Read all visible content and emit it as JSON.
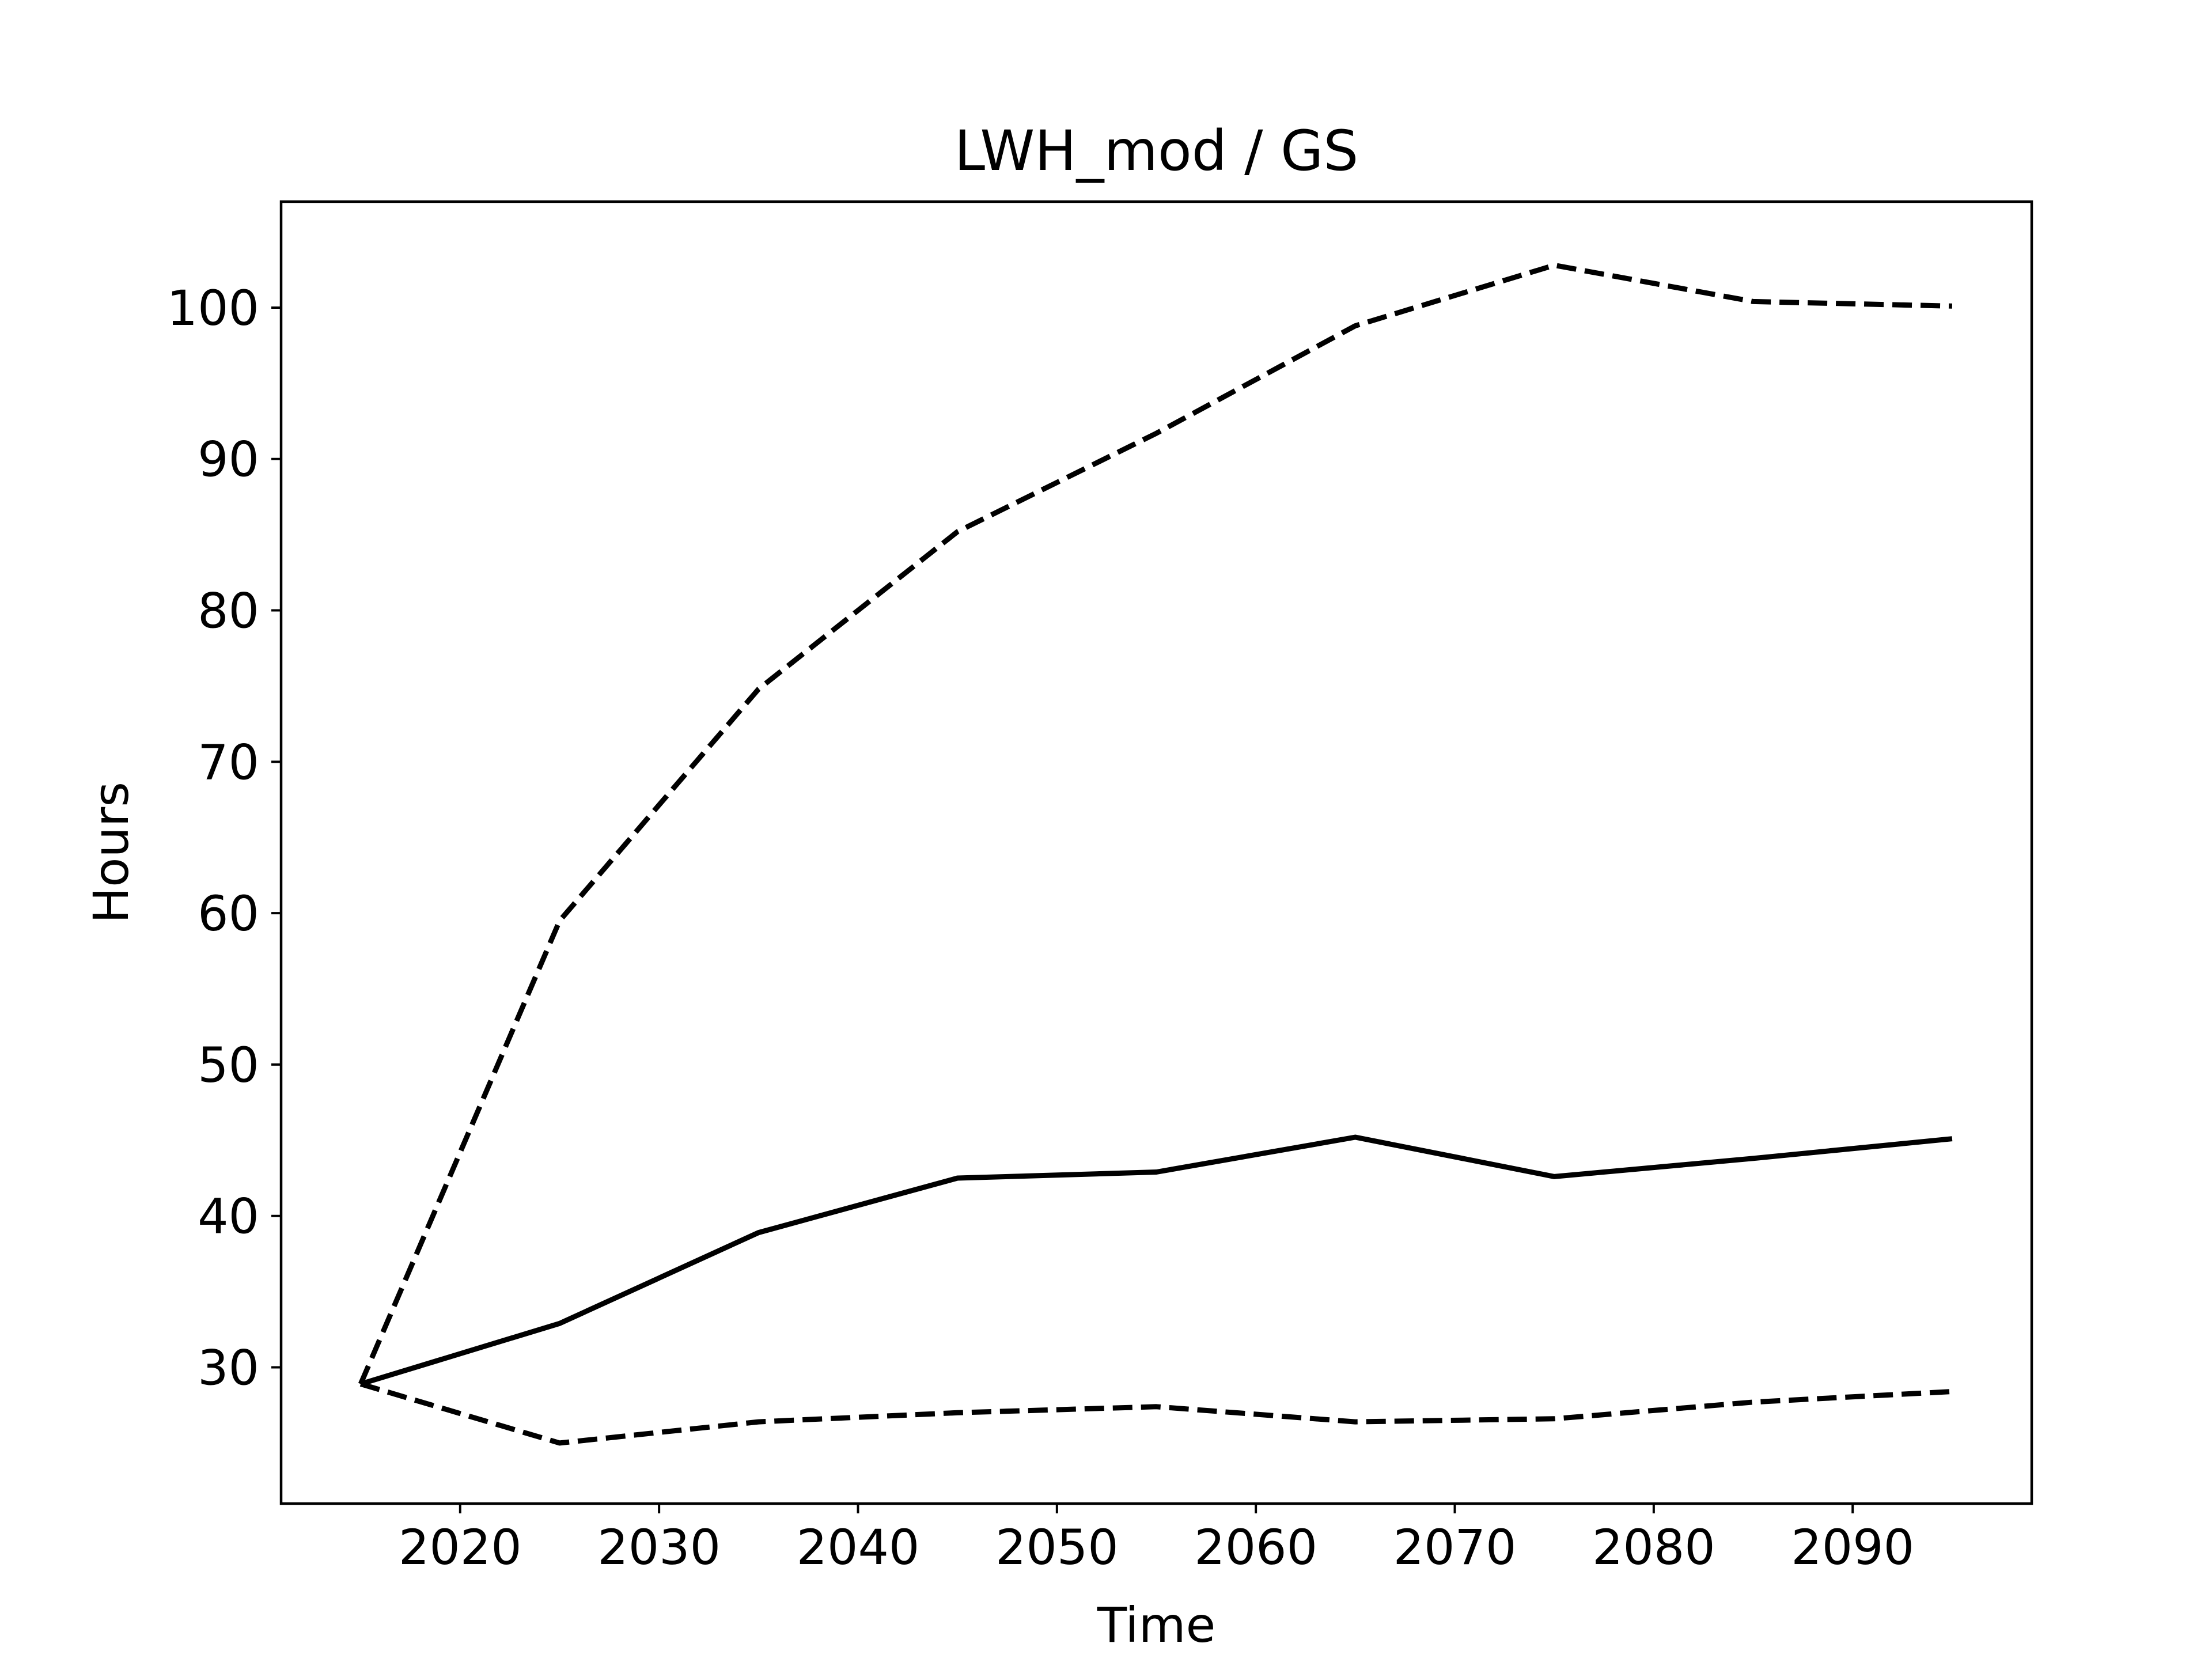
{
  "chart_data": {
    "type": "line",
    "title": "LWH_mod / GS",
    "xlabel": "Time",
    "ylabel": "Hours",
    "xlim": [
      2011,
      2099
    ],
    "ylim": [
      21,
      107
    ],
    "xticks": [
      2020,
      2030,
      2040,
      2050,
      2060,
      2070,
      2080,
      2090
    ],
    "yticks": [
      30,
      40,
      50,
      60,
      70,
      80,
      90,
      100
    ],
    "grid": false,
    "legend": "none",
    "x": [
      2015,
      2025,
      2035,
      2045,
      2055,
      2065,
      2075,
      2085,
      2095
    ],
    "series": [
      {
        "style": "solid",
        "color": "#000000",
        "values": [
          28.9,
          32.9,
          38.9,
          42.5,
          42.9,
          45.2,
          42.6,
          43.8,
          45.1
        ]
      },
      {
        "style": "dashed",
        "color": "#000000",
        "values": [
          28.9,
          59.5,
          74.8,
          85.2,
          91.7,
          98.8,
          102.8,
          100.4,
          100.1
        ]
      },
      {
        "style": "dashed",
        "color": "#000000",
        "values": [
          28.9,
          25.0,
          26.4,
          27.0,
          27.4,
          26.4,
          26.6,
          27.7,
          28.4
        ]
      }
    ]
  }
}
